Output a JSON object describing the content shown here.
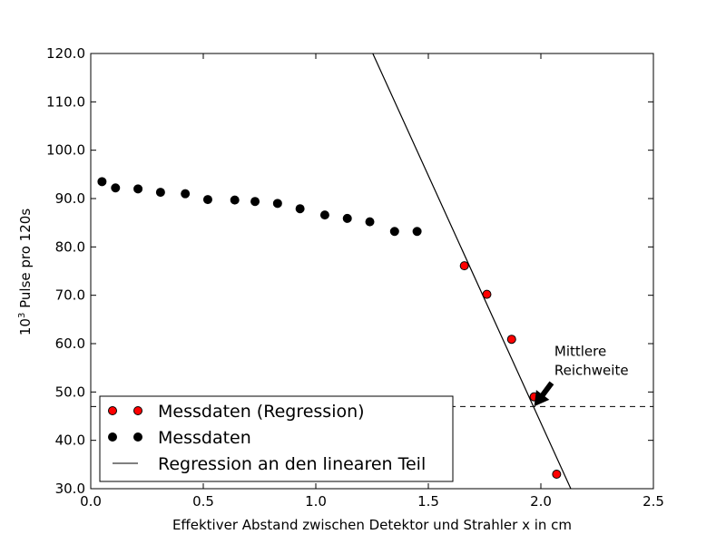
{
  "chart_data": {
    "type": "scatter",
    "title": "",
    "xlabel": "Effektiver Abstand zwischen Detektor und Strahler x in cm",
    "ylabel_base": "10",
    "ylabel_exponent": "3",
    "ylabel_rest": " Pulse pro 120s",
    "xlim": [
      0.0,
      2.5
    ],
    "ylim": [
      30.0,
      120.0
    ],
    "x_ticks": [
      0.0,
      0.5,
      1.0,
      1.5,
      2.0,
      2.5
    ],
    "x_tick_labels": [
      "0.0",
      "0.5",
      "1.0",
      "1.5",
      "2.0",
      "2.5"
    ],
    "y_ticks": [
      30,
      40,
      50,
      60,
      70,
      80,
      90,
      100,
      110,
      120
    ],
    "y_tick_labels": [
      "30.0",
      "40.0",
      "50.0",
      "60.0",
      "70.0",
      "80.0",
      "90.0",
      "100.0",
      "110.0",
      "120.0"
    ],
    "grid": false,
    "legend_position": "lower-left",
    "series": [
      {
        "name": "Messdaten (Regression)",
        "kind": "points",
        "color": "#ff0000",
        "x": [
          1.66,
          1.76,
          1.87,
          1.97,
          2.07
        ],
        "y": [
          76.1,
          70.2,
          60.9,
          49.0,
          33.0
        ]
      },
      {
        "name": "Messdaten",
        "kind": "points",
        "color": "#000000",
        "x": [
          0.05,
          0.11,
          0.21,
          0.31,
          0.42,
          0.52,
          0.64,
          0.73,
          0.83,
          0.93,
          1.04,
          1.14,
          1.24,
          1.35,
          1.45
        ],
        "y": [
          93.5,
          92.2,
          92.0,
          91.3,
          91.0,
          89.8,
          89.7,
          89.4,
          89.0,
          87.9,
          86.6,
          85.9,
          85.2,
          83.2,
          83.2
        ]
      },
      {
        "name": "Regression an den linearen Teil",
        "kind": "line",
        "color": "#000000",
        "slope": -102.3,
        "intercept": 248.2
      }
    ],
    "reference_line": {
      "y": 47.0,
      "style": "dashed",
      "color": "#000000"
    },
    "annotation": {
      "lines": [
        "Mittlere",
        "Reichweite"
      ],
      "arrow_to": [
        1.97,
        47.0
      ],
      "text_at": [
        2.06,
        59.0
      ]
    }
  }
}
